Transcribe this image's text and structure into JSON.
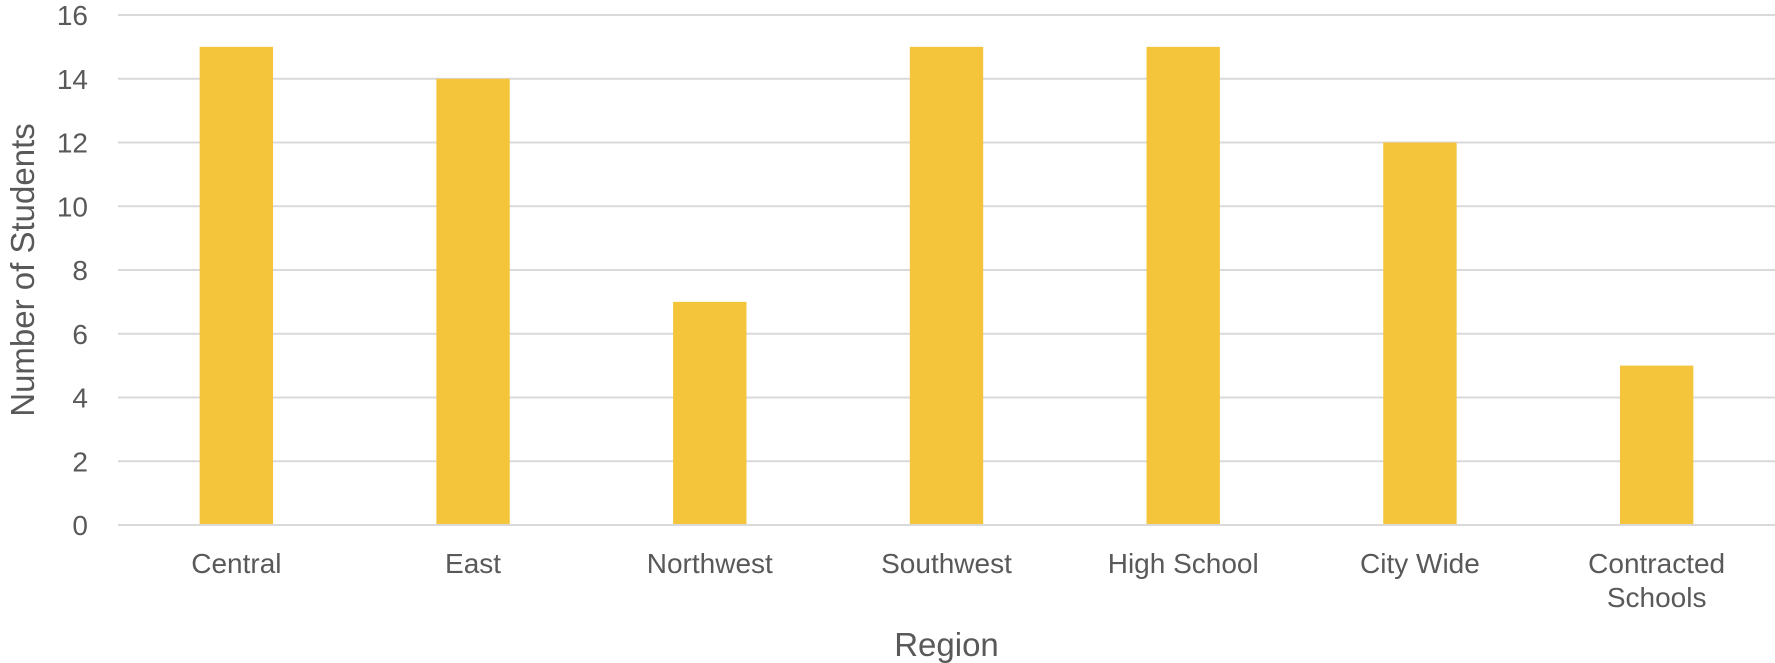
{
  "chart_data": {
    "type": "bar",
    "title": "",
    "xlabel": "Region",
    "ylabel": "Number of Students",
    "categories": [
      "Central",
      "East",
      "Northwest",
      "Southwest",
      "High School",
      "City Wide",
      "Contracted Schools"
    ],
    "category_lines": [
      [
        "Central"
      ],
      [
        "East"
      ],
      [
        "Northwest"
      ],
      [
        "Southwest"
      ],
      [
        "High School"
      ],
      [
        "City Wide"
      ],
      [
        "Contracted",
        "Schools"
      ]
    ],
    "values": [
      15,
      14,
      7,
      15,
      15,
      12,
      5
    ],
    "ylim": [
      0,
      16
    ],
    "yticks": [
      0,
      2,
      4,
      6,
      8,
      10,
      12,
      14,
      16
    ],
    "grid": true,
    "legend": "none",
    "bar_color": "#F4C43A"
  }
}
